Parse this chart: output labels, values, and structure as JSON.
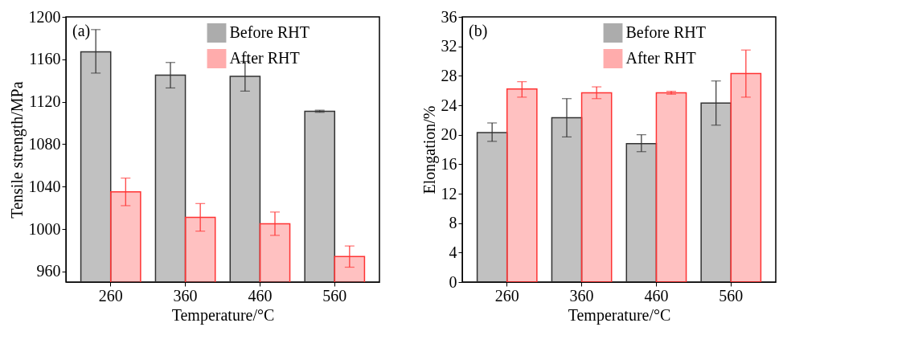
{
  "chart_data": [
    {
      "type": "bar",
      "xlabel": "Temperature/°C",
      "ylabel": "Tensile strength/MPa",
      "annotations": [
        "(a)"
      ],
      "categories": [
        "260",
        "360",
        "460",
        "560"
      ],
      "ylim": [
        950,
        1200
      ],
      "yticks": [
        960,
        1000,
        1040,
        1080,
        1120,
        1160,
        1200
      ],
      "legend": "top right",
      "grid": false,
      "series": [
        {
          "name": "Before RHT",
          "color": "#333333",
          "values": [
            1167,
            1145,
            1144,
            1111
          ],
          "errors": [
            [
              1147,
              1188
            ],
            [
              1133,
              1157
            ],
            [
              1130,
              1158
            ],
            [
              1110,
              1112
            ]
          ]
        },
        {
          "name": "After RHT",
          "color": "#ff3333",
          "values": [
            1035,
            1011,
            1005,
            974
          ],
          "errors": [
            [
              1022,
              1048
            ],
            [
              998,
              1024
            ],
            [
              994,
              1016
            ],
            [
              964,
              984
            ]
          ]
        }
      ]
    },
    {
      "type": "bar",
      "xlabel": "Temperature/°C",
      "ylabel": "Elongation/%",
      "annotations": [
        "(b)"
      ],
      "categories": [
        "260",
        "360",
        "460",
        "560"
      ],
      "ylim": [
        0,
        36
      ],
      "yticks": [
        0,
        4,
        8,
        12,
        16,
        20,
        24,
        28,
        32,
        36
      ],
      "legend": "top right",
      "grid": false,
      "series": [
        {
          "name": "Before RHT",
          "color": "#333333",
          "values": [
            20.3,
            22.3,
            18.8,
            24.3
          ],
          "errors": [
            [
              19.1,
              21.6
            ],
            [
              19.7,
              24.9
            ],
            [
              17.7,
              20.0
            ],
            [
              21.3,
              27.3
            ]
          ]
        },
        {
          "name": "After RHT",
          "color": "#ff3333",
          "values": [
            26.2,
            25.7,
            25.7,
            28.3
          ],
          "errors": [
            [
              25.1,
              27.2
            ],
            [
              24.9,
              26.5
            ],
            [
              25.5,
              25.9
            ],
            [
              25.1,
              31.5
            ]
          ]
        }
      ]
    }
  ]
}
